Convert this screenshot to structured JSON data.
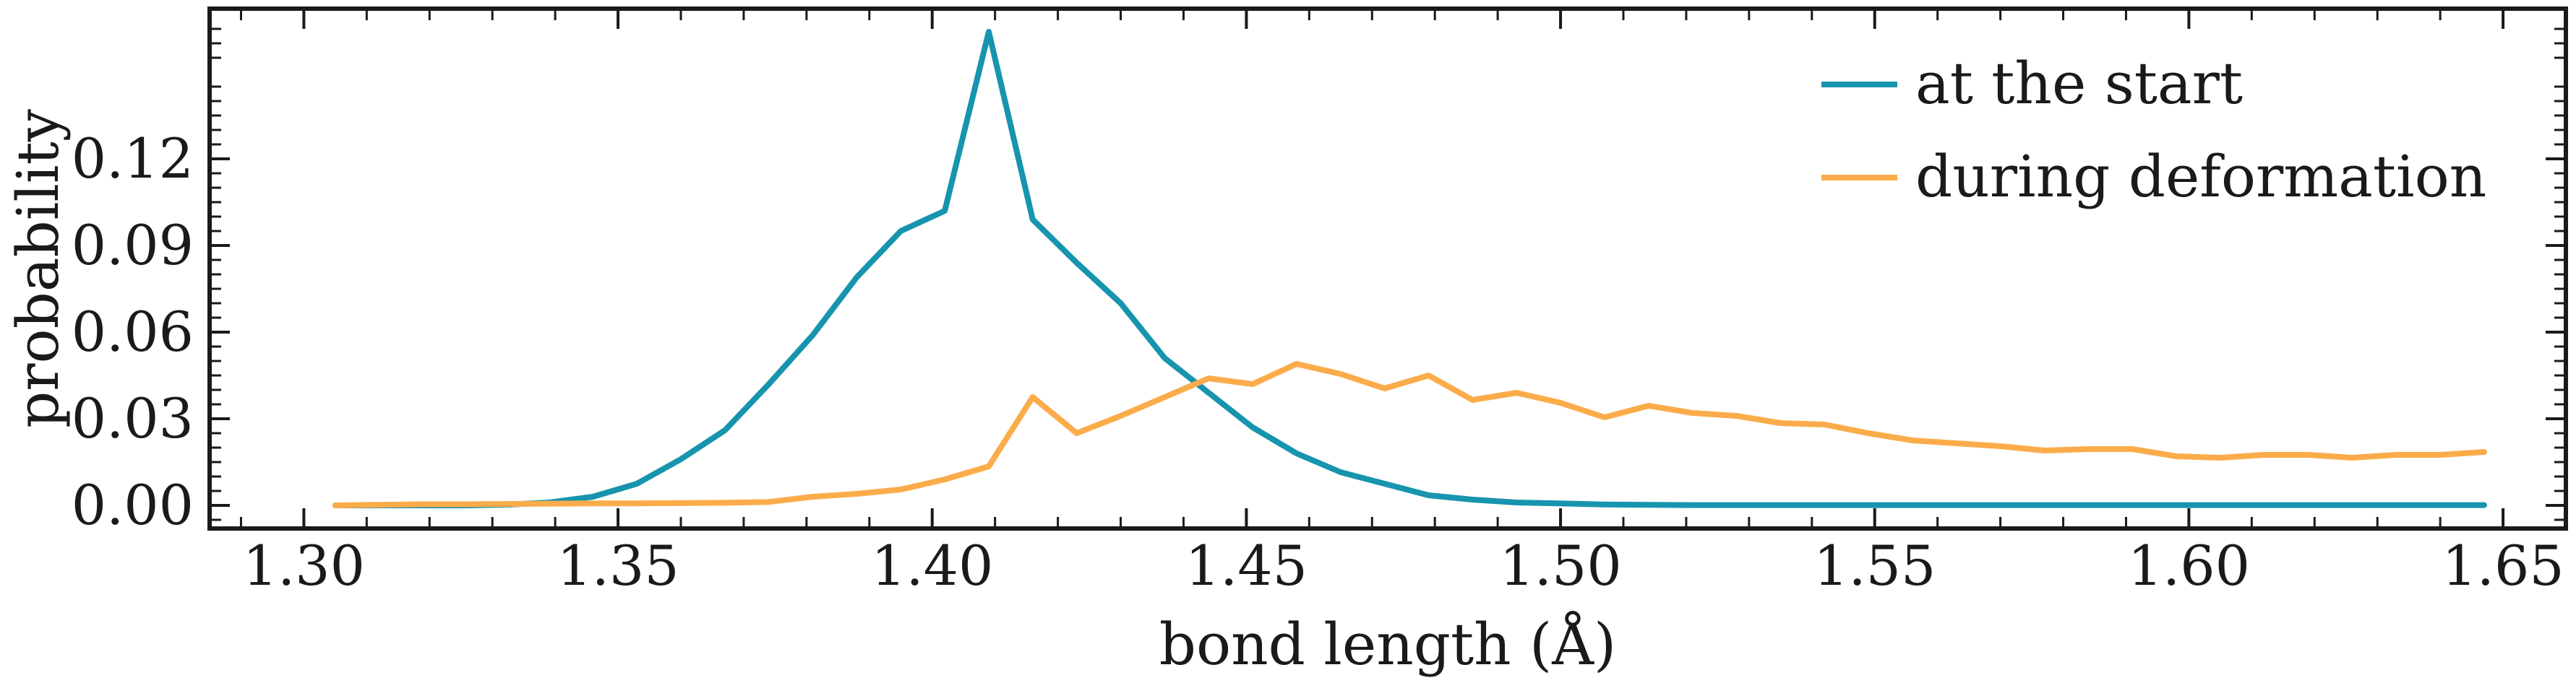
{
  "chart_data": {
    "type": "line",
    "xlabel": "bond length (Å)",
    "ylabel": "probability",
    "xlim": [
      1.285,
      1.66
    ],
    "ylim": [
      -0.008,
      0.172
    ],
    "xticks": [
      1.3,
      1.35,
      1.4,
      1.45,
      1.5,
      1.55,
      1.6,
      1.65
    ],
    "xtick_labels": [
      "1.30",
      "1.35",
      "1.40",
      "1.45",
      "1.50",
      "1.55",
      "1.60",
      "1.65"
    ],
    "yticks": [
      0.0,
      0.03,
      0.06,
      0.09,
      0.12
    ],
    "ytick_labels": [
      "0.00",
      "0.03",
      "0.06",
      "0.09",
      "0.12"
    ],
    "grid": false,
    "legend": "top-right",
    "x": [
      1.305,
      1.312,
      1.319,
      1.326,
      1.333,
      1.339,
      1.346,
      1.353,
      1.36,
      1.367,
      1.374,
      1.381,
      1.388,
      1.395,
      1.402,
      1.409,
      1.416,
      1.423,
      1.43,
      1.437,
      1.444,
      1.451,
      1.458,
      1.465,
      1.472,
      1.479,
      1.486,
      1.493,
      1.5,
      1.507,
      1.514,
      1.521,
      1.528,
      1.535,
      1.542,
      1.549,
      1.556,
      1.563,
      1.57,
      1.577,
      1.584,
      1.591,
      1.598,
      1.605,
      1.612,
      1.619,
      1.626,
      1.633,
      1.64,
      1.647
    ],
    "series": [
      {
        "name": "at the start",
        "color": "#1794ae",
        "values": [
          0.0,
          0.0,
          0.0,
          0.0,
          0.0003,
          0.001,
          0.003,
          0.0075,
          0.016,
          0.026,
          0.042,
          0.059,
          0.079,
          0.095,
          0.102,
          0.164,
          0.099,
          0.084,
          0.07,
          0.051,
          0.039,
          0.027,
          0.018,
          0.0115,
          0.0075,
          0.0035,
          0.002,
          0.001,
          0.0007,
          0.0003,
          0.0002,
          0.0001,
          0.0001,
          0.0001,
          0.0001,
          0.0001,
          0.0001,
          0.0001,
          0.0001,
          0.0001,
          0.0001,
          0.0001,
          0.0001,
          0.0001,
          0.0001,
          0.0001,
          0.0001,
          0.0001,
          0.0001,
          0.0001
        ]
      },
      {
        "name": "during deformation",
        "color": "#fbac4a",
        "values": [
          0.0,
          0.0002,
          0.0004,
          0.0004,
          0.0005,
          0.0006,
          0.0007,
          0.0007,
          0.0008,
          0.0009,
          0.0012,
          0.003,
          0.004,
          0.0055,
          0.009,
          0.0135,
          0.0375,
          0.025,
          0.031,
          0.0375,
          0.044,
          0.042,
          0.049,
          0.0455,
          0.0405,
          0.045,
          0.0365,
          0.039,
          0.0355,
          0.0305,
          0.0345,
          0.032,
          0.031,
          0.0285,
          0.028,
          0.025,
          0.0225,
          0.0215,
          0.0205,
          0.019,
          0.0195,
          0.0195,
          0.017,
          0.0165,
          0.0175,
          0.0175,
          0.0165,
          0.0175,
          0.0175,
          0.0185
        ]
      }
    ]
  }
}
